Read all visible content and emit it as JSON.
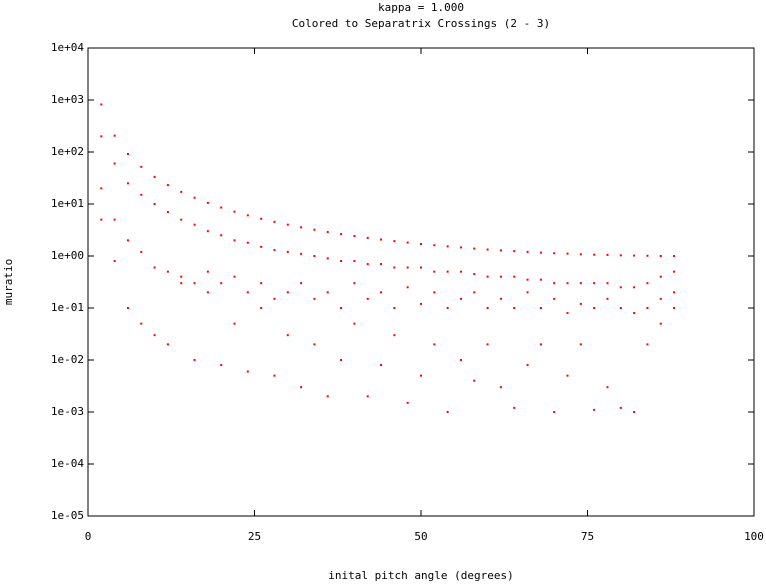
{
  "chart_data": {
    "type": "scatter",
    "title": "kappa = 1.000",
    "subtitle": "Colored to Separatrix Crossings (2 - 3)",
    "xlabel": "inital pitch angle (degrees)",
    "ylabel": "muratio",
    "xlim": [
      0,
      100
    ],
    "xticks": [
      0,
      25,
      50,
      75,
      100
    ],
    "ylim": [
      1e-05,
      10000
    ],
    "log_y": true,
    "yticks": [
      {
        "value": 1e-05,
        "label": "1e-05"
      },
      {
        "value": 0.0001,
        "label": "1e-04"
      },
      {
        "value": 0.001,
        "label": "1e-03"
      },
      {
        "value": 0.01,
        "label": "1e-02"
      },
      {
        "value": 0.1,
        "label": "1e-01"
      },
      {
        "value": 1,
        "label": "1e+00"
      },
      {
        "value": 10,
        "label": "1e+01"
      },
      {
        "value": 100,
        "label": "1e+02"
      },
      {
        "value": 1000,
        "label": "1e+03"
      },
      {
        "value": 10000,
        "label": "1e+04"
      }
    ],
    "color": "#ff0000",
    "x": [
      2,
      2,
      2,
      2,
      4,
      4,
      4,
      4,
      6,
      6,
      6,
      6,
      8,
      8,
      8,
      8,
      10,
      10,
      10,
      10,
      12,
      12,
      12,
      12,
      14,
      14,
      14,
      14,
      16,
      16,
      16,
      16,
      18,
      18,
      18,
      18,
      20,
      20,
      20,
      20,
      22,
      22,
      22,
      22,
      24,
      24,
      24,
      24,
      26,
      26,
      26,
      26,
      28,
      28,
      28,
      28,
      30,
      30,
      30,
      30,
      32,
      32,
      32,
      32,
      34,
      34,
      34,
      34,
      36,
      36,
      36,
      36,
      38,
      38,
      38,
      38,
      40,
      40,
      40,
      40,
      42,
      42,
      42,
      42,
      44,
      44,
      44,
      44,
      46,
      46,
      46,
      46,
      48,
      48,
      48,
      48,
      50,
      50,
      50,
      50,
      52,
      52,
      52,
      52,
      54,
      54,
      54,
      54,
      56,
      56,
      56,
      56,
      58,
      58,
      58,
      58,
      60,
      60,
      60,
      60,
      62,
      62,
      62,
      62,
      64,
      64,
      64,
      64,
      66,
      66,
      66,
      66,
      68,
      68,
      68,
      68,
      70,
      70,
      70,
      70,
      72,
      72,
      72,
      72,
      74,
      74,
      74,
      74,
      76,
      76,
      76,
      76,
      78,
      78,
      78,
      78,
      80,
      80,
      80,
      80,
      82,
      82,
      82,
      82,
      84,
      84,
      84,
      84,
      86,
      86,
      86,
      86,
      88,
      88,
      88,
      88
    ],
    "values": [
      821,
      200,
      20,
      5,
      206,
      60,
      5,
      0.8,
      91.5,
      25,
      2,
      0.1,
      51.8,
      15,
      1.2,
      0.05,
      33.2,
      10,
      0.6,
      0.03,
      23.1,
      7,
      0.5,
      0.02,
      17.1,
      5,
      0.4,
      0.3,
      13.2,
      4,
      0.3,
      0.01,
      10.5,
      3,
      0.5,
      0.2,
      8.55,
      2.5,
      0.3,
      0.008,
      7.12,
      2,
      0.4,
      0.05,
      6.05,
      1.8,
      0.2,
      0.006,
      5.2,
      1.5,
      0.3,
      0.1,
      4.54,
      1.3,
      0.15,
      0.005,
      4.0,
      1.2,
      0.2,
      0.03,
      3.56,
      1.1,
      0.3,
      0.003,
      3.2,
      1.0,
      0.15,
      0.02,
      2.89,
      0.9,
      0.2,
      0.002,
      2.64,
      0.8,
      0.1,
      0.01,
      2.42,
      0.8,
      0.3,
      0.05,
      2.23,
      0.7,
      0.15,
      0.002,
      2.07,
      0.7,
      0.2,
      0.008,
      1.93,
      0.6,
      0.1,
      0.03,
      1.81,
      0.6,
      0.25,
      0.0015,
      1.7,
      0.6,
      0.12,
      0.005,
      1.61,
      0.5,
      0.2,
      0.02,
      1.53,
      0.5,
      0.1,
      0.001,
      1.46,
      0.5,
      0.15,
      0.01,
      1.39,
      0.45,
      0.2,
      0.004,
      1.33,
      0.4,
      0.1,
      0.02,
      1.28,
      0.4,
      0.15,
      0.003,
      1.24,
      0.4,
      0.1,
      0.0012,
      1.2,
      0.35,
      0.2,
      0.008,
      1.16,
      0.35,
      0.1,
      0.02,
      1.13,
      0.3,
      0.15,
      0.001,
      1.11,
      0.3,
      0.08,
      0.005,
      1.08,
      0.3,
      0.12,
      0.02,
      1.06,
      0.3,
      0.1,
      0.0011,
      1.05,
      0.3,
      0.15,
      0.003,
      1.03,
      0.25,
      0.1,
      0.0012,
      1.02,
      0.25,
      0.08,
      0.001,
      1.01,
      0.3,
      0.1,
      0.02,
      1.0,
      0.4,
      0.15,
      0.05,
      1.0,
      0.5,
      0.2,
      0.1
    ]
  }
}
